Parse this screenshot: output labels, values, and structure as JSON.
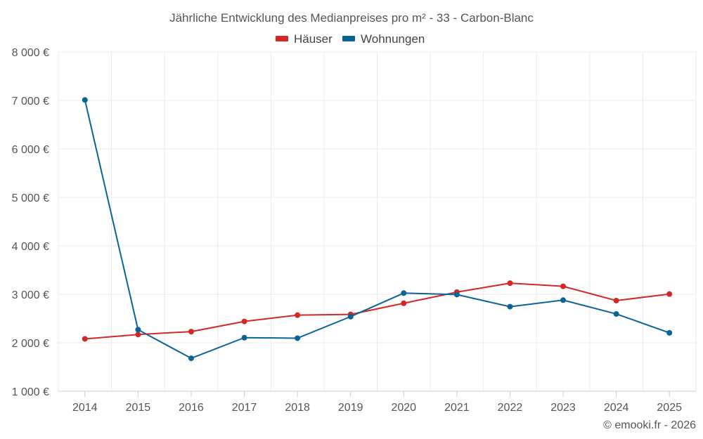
{
  "chart_data": {
    "type": "line",
    "title": "Jährliche Entwicklung des Medianpreises pro m² - 33 - Carbon-Blanc",
    "categories": [
      "2014",
      "2015",
      "2016",
      "2017",
      "2018",
      "2019",
      "2020",
      "2021",
      "2022",
      "2023",
      "2024",
      "2025"
    ],
    "series": [
      {
        "name": "Häuser",
        "color": "#d62728",
        "values": [
          2080,
          2170,
          2230,
          2440,
          2570,
          2585,
          2815,
          3045,
          3230,
          3165,
          2870,
          3005
        ]
      },
      {
        "name": "Wohnungen",
        "color": "#0a6496",
        "values": [
          7010,
          2270,
          1680,
          2105,
          2095,
          2540,
          3025,
          2995,
          2745,
          2880,
          2595,
          2205
        ]
      }
    ],
    "ylim": [
      1000,
      8000
    ],
    "yticks": [
      1000,
      2000,
      3000,
      4000,
      5000,
      6000,
      7000,
      8000
    ],
    "ytick_labels": [
      "1 000 €",
      "2 000 €",
      "3 000 €",
      "4 000 €",
      "5 000 €",
      "6 000 €",
      "7 000 €",
      "8 000 €"
    ],
    "legend_position": "top-center",
    "grid": true
  },
  "credit": "© emooki.fr - 2026"
}
